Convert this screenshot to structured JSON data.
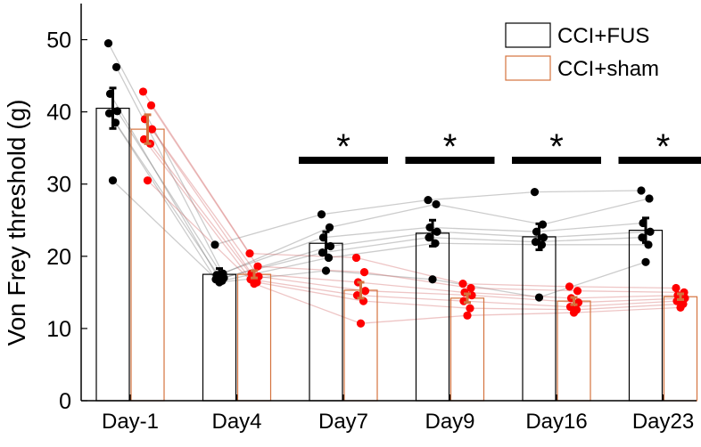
{
  "chart_data": {
    "type": "bar",
    "title": "",
    "xlabel": "",
    "ylabel": "Von Frey threshold (g)",
    "ylim": [
      0,
      55
    ],
    "yticks": [
      0,
      10,
      20,
      30,
      40,
      50
    ],
    "categories": [
      "Day-1",
      "Day4",
      "Day7",
      "Day9",
      "Day16",
      "Day23"
    ],
    "legend_position": "top-right",
    "significance_label": "*",
    "significant_categories": [
      "Day7",
      "Day9",
      "Day16",
      "Day23"
    ],
    "series": [
      {
        "name": "CCI+FUS",
        "color": "#000000",
        "point_color": "#000000",
        "values": [
          40.5,
          17.5,
          21.8,
          23.2,
          22.7,
          23.6
        ],
        "sem": [
          2.8,
          0.8,
          1.6,
          1.8,
          1.8,
          1.7
        ],
        "points": [
          [
            49.5,
            46.2,
            42.5,
            40.1,
            39.8,
            38.5,
            30.5
          ],
          [
            21.6,
            17.6,
            17.4,
            17.0,
            16.8,
            16.6,
            16.4
          ],
          [
            25.8,
            24.0,
            22.6,
            21.4,
            20.5,
            19.8,
            18.0
          ],
          [
            27.8,
            27.2,
            24.0,
            23.4,
            22.6,
            21.8,
            16.8
          ],
          [
            28.9,
            24.4,
            23.4,
            22.6,
            22.0,
            21.6,
            14.3
          ],
          [
            29.1,
            28.0,
            24.6,
            23.4,
            22.6,
            21.6,
            19.2
          ]
        ]
      },
      {
        "name": "CCI+sham",
        "color": "#d4733e",
        "point_color": "#ff0000",
        "values": [
          37.6,
          17.5,
          15.3,
          14.2,
          13.8,
          14.4
        ],
        "sem": [
          2.0,
          0.5,
          1.1,
          0.6,
          0.5,
          0.4
        ],
        "points": [
          [
            42.8,
            40.9,
            39.0,
            37.6,
            36.2,
            35.6,
            30.5
          ],
          [
            20.4,
            18.6,
            17.6,
            17.2,
            16.8,
            16.4,
            16.2
          ],
          [
            19.8,
            17.8,
            16.4,
            15.2,
            14.6,
            13.8,
            10.7
          ],
          [
            16.2,
            15.6,
            15.0,
            14.6,
            13.8,
            12.8,
            11.8
          ],
          [
            15.8,
            15.2,
            14.2,
            13.6,
            13.0,
            12.6,
            12.2
          ],
          [
            15.6,
            15.0,
            14.6,
            14.2,
            13.8,
            13.4,
            12.9
          ]
        ]
      }
    ]
  }
}
